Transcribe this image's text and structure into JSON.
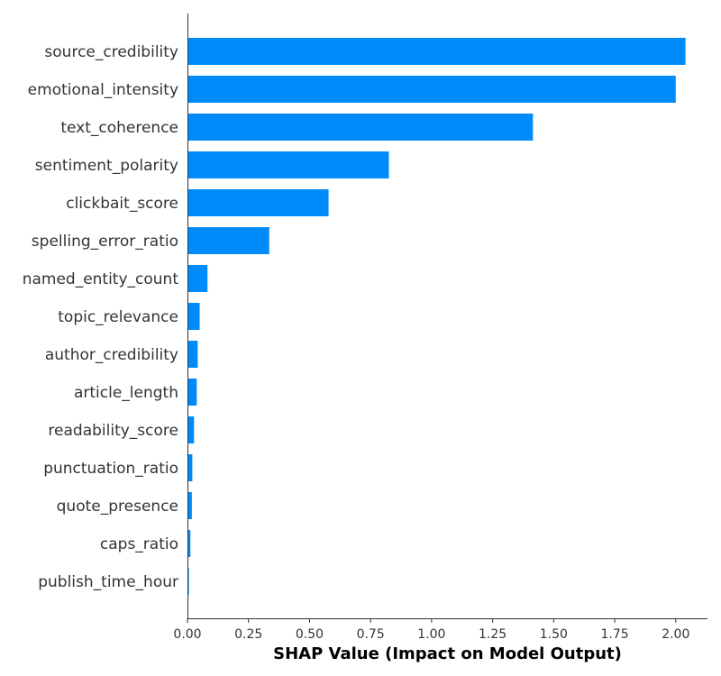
{
  "chart_data": {
    "type": "bar",
    "orientation": "horizontal",
    "categories": [
      "source_credibility",
      "emotional_intensity",
      "text_coherence",
      "sentiment_polarity",
      "clickbait_score",
      "spelling_error_ratio",
      "named_entity_count",
      "topic_relevance",
      "author_credibility",
      "article_length",
      "readability_score",
      "punctuation_ratio",
      "quote_presence",
      "caps_ratio",
      "publish_time_hour"
    ],
    "values": [
      2.04,
      2.0,
      1.415,
      0.825,
      0.578,
      0.335,
      0.082,
      0.05,
      0.042,
      0.038,
      0.027,
      0.02,
      0.018,
      0.012,
      0.006
    ],
    "xlim": [
      0,
      2.13
    ],
    "xticks": [
      0.0,
      0.25,
      0.5,
      0.75,
      1.0,
      1.25,
      1.5,
      1.75,
      2.0
    ],
    "xtick_labels": [
      "0.00",
      "0.25",
      "0.50",
      "0.75",
      "1.00",
      "1.25",
      "1.50",
      "1.75",
      "2.00"
    ],
    "xlabel": "SHAP Value (Impact on Model Output)",
    "bar_color": "#008bfb",
    "grid": false
  }
}
